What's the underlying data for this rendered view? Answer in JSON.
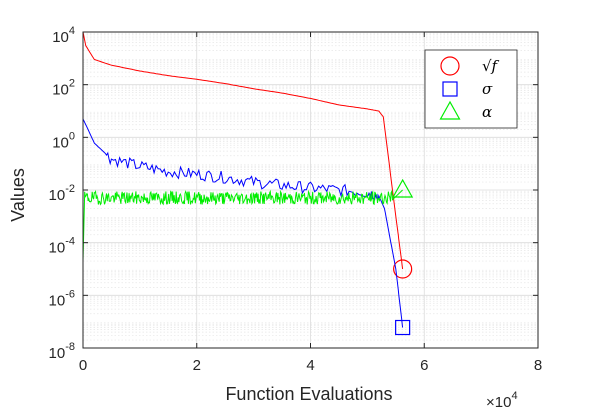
{
  "chart_data": {
    "type": "line",
    "title": "",
    "xlabel": "Function Evaluations",
    "ylabel": "Values",
    "x_multiplier_label": {
      "base": "×10",
      "exponent": "4"
    },
    "xlim": [
      0,
      8
    ],
    "ylim": [
      1e-08,
      10000.0
    ],
    "yscale": "log",
    "x_ticks": [
      "0",
      "2",
      "4",
      "6",
      "8"
    ],
    "y_ticks": [
      {
        "base": "10",
        "exponent": "4",
        "value": 10000.0
      },
      {
        "base": "10",
        "exponent": "2",
        "value": 100.0
      },
      {
        "base": "10",
        "exponent": "0",
        "value": 1
      },
      {
        "base": "10",
        "exponent": "-2",
        "value": 0.01
      },
      {
        "base": "10",
        "exponent": "-4",
        "value": 0.0001
      },
      {
        "base": "10",
        "exponent": "-6",
        "value": 1e-06
      },
      {
        "base": "10",
        "exponent": "-8",
        "value": 1e-08
      }
    ],
    "grid": true,
    "minor_grid": true,
    "legend_position": "top-right",
    "series": [
      {
        "name": "√f",
        "color": "#ff0000",
        "marker": "circle",
        "end_marker": {
          "x": 5.62,
          "y": 1e-05
        },
        "x": [
          0,
          0.05,
          0.2,
          0.5,
          1,
          1.5,
          2,
          2.5,
          3,
          3.5,
          4,
          4.5,
          5,
          5.2,
          5.28,
          5.5,
          5.62
        ],
        "y": [
          10000,
          3000,
          900,
          550,
          330,
          220,
          160,
          110,
          70,
          48,
          30,
          17,
          12,
          10,
          6,
          0.001,
          1e-05
        ]
      },
      {
        "name": "σ",
        "color": "#0000ff",
        "marker": "square",
        "end_marker": {
          "x": 5.62,
          "y": 6e-08
        },
        "x": [
          0,
          0.05,
          0.2,
          0.5,
          1,
          1.5,
          2,
          2.5,
          3,
          3.5,
          4,
          4.5,
          5,
          5.2,
          5.3,
          5.5,
          5.62
        ],
        "y": [
          5,
          3,
          0.6,
          0.15,
          0.08,
          0.05,
          0.04,
          0.03,
          0.02,
          0.015,
          0.012,
          0.01,
          0.008,
          0.006,
          0.002,
          1e-05,
          6e-08
        ]
      },
      {
        "name": "α",
        "color": "#00ee00",
        "marker": "triangle",
        "end_marker": {
          "x": 5.62,
          "y": 0.01
        },
        "x": [
          0,
          0.03,
          5.45,
          5.62
        ],
        "y": [
          2e-05,
          0.005,
          0.005,
          0.01
        ],
        "noise_amplitude_log10": 0.25
      }
    ]
  }
}
